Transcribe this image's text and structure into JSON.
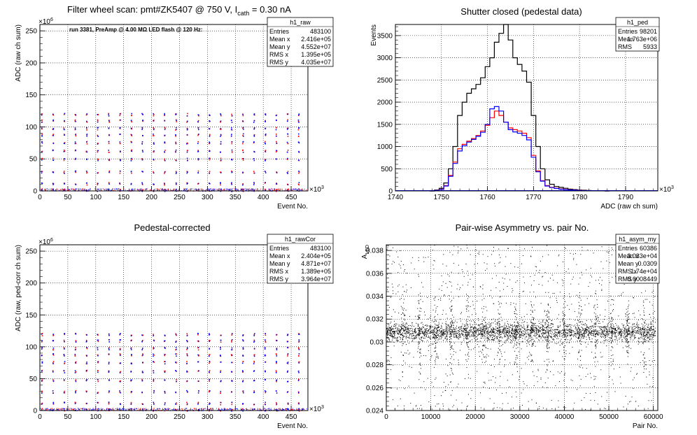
{
  "chart_data": [
    {
      "type": "scatter",
      "id": "raw",
      "title": "Filter wheel scan: pmt#ZK5407 @   750 V, I",
      "title_sub": "cath",
      "title_tail": " = 0.30 nA",
      "annotation": "run 3381, PreAmp @ 4.00 MΩ LED flash @  120 Hz:",
      "xlabel": "Event No.",
      "ylabel": "ADC (raw ch sum)",
      "x_exponent": "×10",
      "x_exp_power": "3",
      "y_exponent": "×10",
      "y_exp_power": "6",
      "xlim": [
        0,
        480
      ],
      "ylim": [
        0,
        260
      ],
      "x_ticks": [
        "0",
        "50",
        "100",
        "150",
        "200",
        "250",
        "300",
        "350",
        "400",
        "450"
      ],
      "y_ticks": [
        "0",
        "50",
        "100",
        "150",
        "200",
        "250"
      ],
      "band_levels": [
        2,
        12,
        30,
        50,
        63,
        76,
        88,
        98,
        110,
        120
      ],
      "series": [
        {
          "color": "#ff0000"
        },
        {
          "color": "#0000ff"
        }
      ],
      "stats": {
        "name": "h1_raw",
        "rows": [
          {
            "label": "Entries",
            "value": "483100"
          },
          {
            "label": "Mean x",
            "value": "2.416e+05"
          },
          {
            "label": "Mean y",
            "value": "4.552e+07"
          },
          {
            "label": "RMS x",
            "value": "1.395e+05"
          },
          {
            "label": "RMS y",
            "value": "4.035e+07"
          }
        ]
      }
    },
    {
      "type": "line",
      "id": "ped",
      "title": "Shutter closed (pedestal data)",
      "xlabel": "ADC (raw ch sum)",
      "ylabel": "Events",
      "x_exponent": "×10",
      "x_exp_power": "3",
      "xlim": [
        1740,
        1797
      ],
      "ylim": [
        0,
        3750
      ],
      "x_ticks": [
        "1740",
        "1750",
        "1760",
        "1770",
        "1780",
        "1790"
      ],
      "y_ticks": [
        "0",
        "500",
        "1000",
        "1500",
        "2000",
        "2500",
        "3000",
        "3500"
      ],
      "x": [
        1748,
        1749,
        1750,
        1751,
        1752,
        1753,
        1754,
        1755,
        1756,
        1757,
        1758,
        1759,
        1760,
        1761,
        1762,
        1763,
        1764,
        1765,
        1766,
        1767,
        1768,
        1769,
        1770,
        1771,
        1772,
        1773,
        1774,
        1775,
        1776,
        1777,
        1778,
        1779,
        1780,
        1781,
        1782,
        1783,
        1784,
        1785,
        1786
      ],
      "series": [
        {
          "color": "#000000",
          "values": [
            0,
            20,
            60,
            180,
            500,
            1000,
            1700,
            2000,
            2200,
            2300,
            2400,
            2550,
            2800,
            3000,
            3350,
            3550,
            3750,
            3400,
            3000,
            2850,
            2700,
            2450,
            1700,
            1000,
            500,
            250,
            150,
            100,
            80,
            60,
            40,
            30,
            20,
            15,
            10,
            6,
            4,
            2,
            0
          ]
        },
        {
          "color": "#ff0000",
          "values": [
            0,
            10,
            40,
            120,
            350,
            650,
            950,
            1050,
            1120,
            1180,
            1250,
            1350,
            1480,
            1650,
            1800,
            1700,
            1550,
            1420,
            1380,
            1350,
            1300,
            1200,
            800,
            450,
            230,
            120,
            80,
            60,
            45,
            35,
            25,
            18,
            12,
            8,
            6,
            4,
            2,
            1,
            0
          ]
        },
        {
          "color": "#0000ff",
          "values": [
            0,
            10,
            35,
            110,
            330,
            620,
            900,
            1020,
            1100,
            1160,
            1230,
            1320,
            1500,
            1850,
            1900,
            1800,
            1550,
            1380,
            1330,
            1300,
            1250,
            1150,
            760,
            430,
            220,
            110,
            75,
            55,
            40,
            30,
            22,
            16,
            11,
            7,
            5,
            3,
            2,
            1,
            0
          ]
        }
      ],
      "stats": {
        "name": "h1_ped",
        "rows": [
          {
            "label": "Entries",
            "value": "98201"
          },
          {
            "label": "Mean",
            "value": "1.763e+06"
          },
          {
            "label": "RMS",
            "value": "5933"
          }
        ]
      }
    },
    {
      "type": "scatter",
      "id": "rawCor",
      "title": "Pedestal-corrected",
      "xlabel": "Event No.",
      "ylabel": "ADC (raw, ped-corr ch sum)",
      "x_exponent": "×10",
      "x_exp_power": "3",
      "y_exponent": "×10",
      "y_exp_power": "6",
      "xlim": [
        0,
        480
      ],
      "ylim": [
        0,
        260
      ],
      "x_ticks": [
        "0",
        "50",
        "100",
        "150",
        "200",
        "250",
        "300",
        "350",
        "400",
        "450"
      ],
      "y_ticks": [
        "0",
        "50",
        "100",
        "150",
        "200",
        "250"
      ],
      "band_levels": [
        2,
        12,
        30,
        48,
        62,
        76,
        88,
        98,
        110,
        120
      ],
      "series": [
        {
          "color": "#ff0000"
        },
        {
          "color": "#0000ff"
        }
      ],
      "stats": {
        "name": "h1_rawCor",
        "rows": [
          {
            "label": "Entries",
            "value": "483100"
          },
          {
            "label": "Mean x",
            "value": "2.404e+05"
          },
          {
            "label": "Mean y",
            "value": "4.871e+07"
          },
          {
            "label": "RMS x",
            "value": "1.389e+05"
          },
          {
            "label": "RMS y",
            "value": "3.964e+07"
          }
        ]
      }
    },
    {
      "type": "scatter",
      "id": "asym",
      "title": "Pair-wise Asymmetry vs. pair No.",
      "xlabel": "Pair No.",
      "ylabel": "A",
      "ylabel_sub": "LED",
      "xlim": [
        0,
        61000
      ],
      "ylim": [
        0.024,
        0.0385
      ],
      "x_ticks": [
        "0",
        "10000",
        "20000",
        "30000",
        "40000",
        "50000",
        "60000"
      ],
      "y_ticks": [
        "0.024",
        "0.026",
        "0.028",
        "0.03",
        "0.032",
        "0.034",
        "0.036",
        "0.038"
      ],
      "core_mean": 0.0309,
      "series": [
        {
          "color": "#000000"
        }
      ],
      "stats": {
        "name": "h1_asym_my",
        "rows": [
          {
            "label": "Entries",
            "value": "60386"
          },
          {
            "label": "Mean x",
            "value": "3.033e+04"
          },
          {
            "label": "Mean y",
            "value": "0.0309"
          },
          {
            "label": "RMS x",
            "value": "1.74e+04"
          },
          {
            "label": "RMS y",
            "value": "0.0008449"
          }
        ]
      }
    }
  ]
}
